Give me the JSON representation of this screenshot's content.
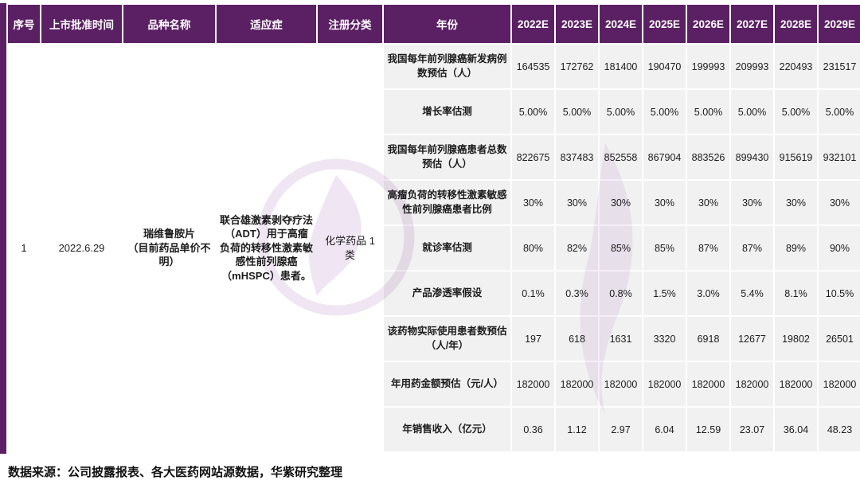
{
  "page": {
    "source_note": "数据来源：公司披露报表、各大医药网站源数据，华紫研究整理"
  },
  "colors": {
    "header_bg": "#5b2064",
    "body_cell_bg": "#f1f1f1",
    "grid": "#ffffff",
    "watermark": "#e3d2ea"
  },
  "table": {
    "headers": [
      "序号",
      "上市批准时间",
      "品种名称",
      "适应症",
      "注册分类",
      "年份",
      "2022E",
      "2023E",
      "2024E",
      "2025E",
      "2026E",
      "2027E",
      "2028E",
      "2029E"
    ],
    "product_info": [
      {
        "name": "cell-serial-number",
        "strong": false,
        "text": "1"
      },
      {
        "name": "cell-approval-date",
        "strong": false,
        "text": "2022.6.29"
      },
      {
        "name": "cell-product-name",
        "strong": true,
        "text": "瑞维鲁胺片\n（目前药品单价不明）"
      },
      {
        "name": "cell-indication",
        "strong": true,
        "text": "联合雄激素剥夺疗法（ADT）用于高瘤负荷的转移性激素敏感性前列腺癌（mHSPC）患者。"
      },
      {
        "name": "cell-registration-class",
        "strong": false,
        "text": "化学药品 1类"
      }
    ],
    "metric_rows": [
      {
        "label": "我国每年前列腺癌新发病例数预估（人）",
        "values": [
          "164535",
          "172762",
          "181400",
          "190470",
          "199993",
          "209993",
          "220493",
          "231517"
        ]
      },
      {
        "label": "增长率估测",
        "values": [
          "5.00%",
          "5.00%",
          "5.00%",
          "5.00%",
          "5.00%",
          "5.00%",
          "5.00%",
          "5.00%"
        ]
      },
      {
        "label": "我国每年前列腺癌患者总数预估（人）",
        "values": [
          "822675",
          "837483",
          "852558",
          "867904",
          "883526",
          "899430",
          "915619",
          "932101"
        ]
      },
      {
        "label": "高瘤负荷的转移性激素敏感性前列腺癌患者比例",
        "values": [
          "30%",
          "30%",
          "30%",
          "30%",
          "30%",
          "30%",
          "30%",
          "30%"
        ]
      },
      {
        "label": "就诊率估测",
        "values": [
          "80%",
          "82%",
          "85%",
          "85%",
          "87%",
          "87%",
          "89%",
          "90%"
        ]
      },
      {
        "label": "产品渗透率假设",
        "values": [
          "0.1%",
          "0.3%",
          "0.8%",
          "1.5%",
          "3.0%",
          "5.4%",
          "8.1%",
          "10.5%"
        ]
      },
      {
        "label": "该药物实际使用患者数预估（人/年）",
        "values": [
          "197",
          "618",
          "1631",
          "3320",
          "6918",
          "12677",
          "19802",
          "26501"
        ]
      },
      {
        "label": "年用药金额预估（元/人）",
        "values": [
          "182000",
          "182000",
          "182000",
          "182000",
          "182000",
          "182000",
          "182000",
          "182000"
        ]
      },
      {
        "label": "年销售收入（亿元）",
        "values": [
          "0.36",
          "1.12",
          "2.97",
          "6.04",
          "12.59",
          "23.07",
          "36.04",
          "48.23"
        ]
      }
    ]
  }
}
